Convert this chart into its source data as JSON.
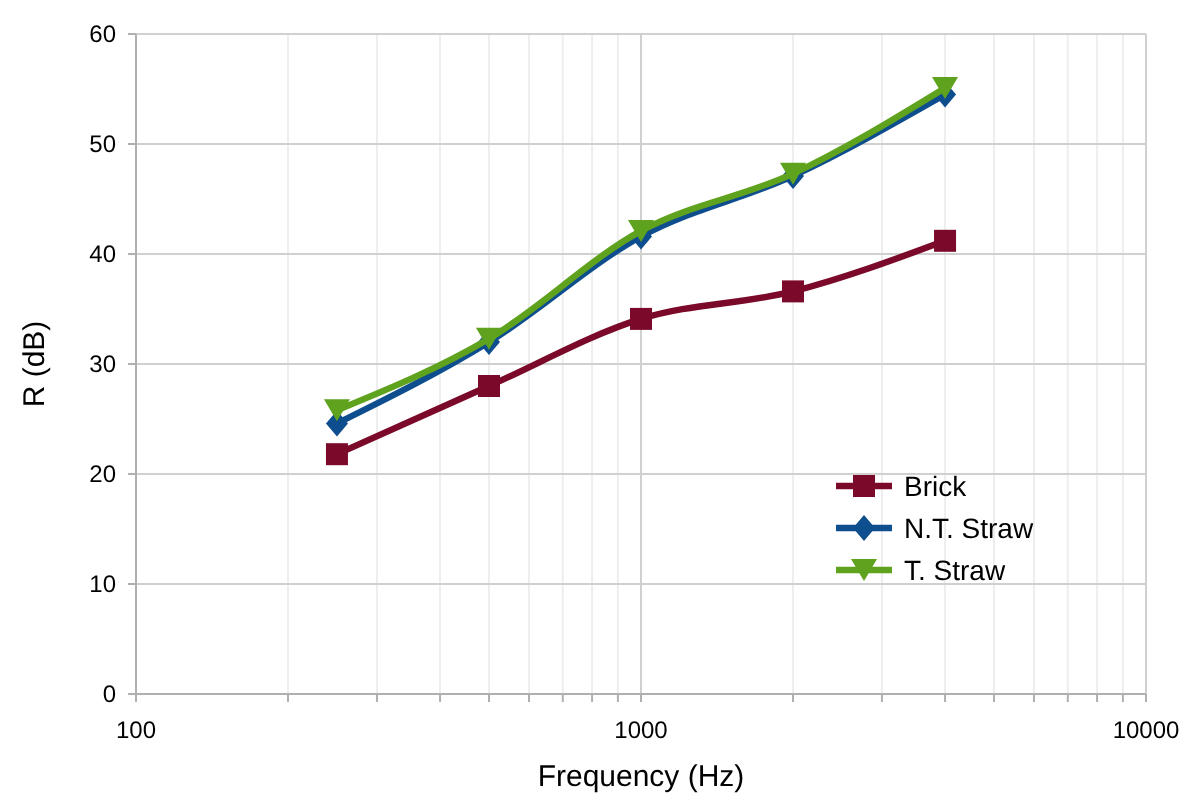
{
  "chart_data": {
    "type": "line",
    "xlabel": "Frequency (Hz)",
    "ylabel": "R (dB)",
    "log": "x",
    "x": [
      250,
      500,
      1000,
      2000,
      4000
    ],
    "series": [
      {
        "name": "Brick",
        "color": "#7b0a2a",
        "marker": "square",
        "values": [
          21.8,
          28,
          34.1,
          36.6,
          41.2
        ]
      },
      {
        "name": "N.T. Straw",
        "color": "#0e4e8e",
        "marker": "diamond",
        "values": [
          24.6,
          32,
          41.6,
          47.1,
          54.5
        ]
      },
      {
        "name": "T. Straw",
        "color": "#5ea21e",
        "marker": "triangle",
        "values": [
          25.8,
          32.3,
          42.1,
          47.3,
          55.1
        ]
      }
    ],
    "xlim": [
      100,
      10000
    ],
    "xticks": [
      100,
      {
        "value": 200,
        "label": null
      },
      {
        "value": 300,
        "label": null
      },
      {
        "value": 400,
        "label": null
      },
      {
        "value": 500,
        "label": null
      },
      {
        "value": 600,
        "label": null
      },
      {
        "value": 700,
        "label": null
      },
      {
        "value": 800,
        "label": null
      },
      {
        "value": 900,
        "label": null
      },
      1000,
      {
        "value": 2000,
        "label": null
      },
      {
        "value": 3000,
        "label": null
      },
      {
        "value": 4000,
        "label": null
      },
      {
        "value": 5000,
        "label": null
      },
      {
        "value": 6000,
        "label": null
      },
      {
        "value": 7000,
        "label": null
      },
      {
        "value": 8000,
        "label": null
      },
      {
        "value": 9000,
        "label": null
      },
      10000
    ],
    "ylim": [
      0,
      60
    ],
    "yticks": [
      0,
      10,
      20,
      30,
      40,
      50,
      60
    ],
    "grid": true,
    "legend": "bottom right"
  }
}
